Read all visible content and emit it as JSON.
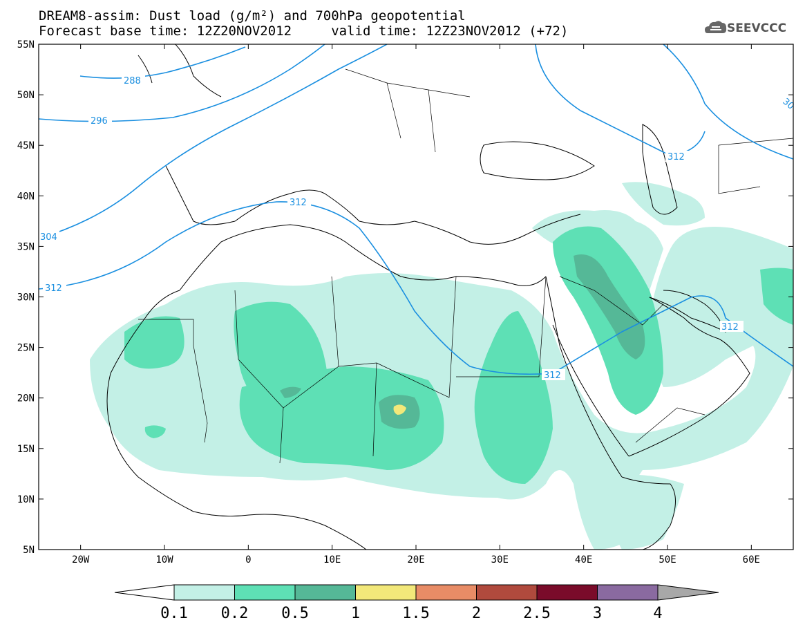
{
  "title": {
    "line1": "DREAM8-assim: Dust load (g/m²) and 700hPa geopotential",
    "line2": "Forecast base time: 12Z20NOV2012     valid time: 12Z23NOV2012 (+72)"
  },
  "logo": {
    "text": "SEEVCCC",
    "icon": "cloud-icon"
  },
  "axes": {
    "lon_ticks": [
      "20W",
      "10W",
      "0",
      "10E",
      "20E",
      "30E",
      "40E",
      "50E",
      "60E"
    ],
    "lat_ticks": [
      "55N",
      "50N",
      "45N",
      "40N",
      "35N",
      "30N",
      "25N",
      "20N",
      "15N",
      "10N",
      "5N"
    ],
    "lon_range": [
      -25,
      65
    ],
    "lat_range": [
      5,
      55
    ]
  },
  "contour_labels": [
    "288",
    "296",
    "304",
    "312",
    "312",
    "312",
    "312",
    "312",
    "30"
  ],
  "legend": {
    "labels": [
      "0.1",
      "0.2",
      "0.5",
      "1",
      "1.5",
      "2",
      "2.5",
      "3",
      "4"
    ],
    "colors": [
      "#c3f0e6",
      "#5ee0b5",
      "#55b897",
      "#f2e87a",
      "#e88c66",
      "#b04a3d",
      "#7a0b2a",
      "#8a6aa0"
    ],
    "lower_arrow_color": "#ffffff",
    "upper_arrow_color": "#a8a8a8"
  },
  "colors": {
    "contour": "#1a8fe0",
    "coastline": "#000000"
  }
}
